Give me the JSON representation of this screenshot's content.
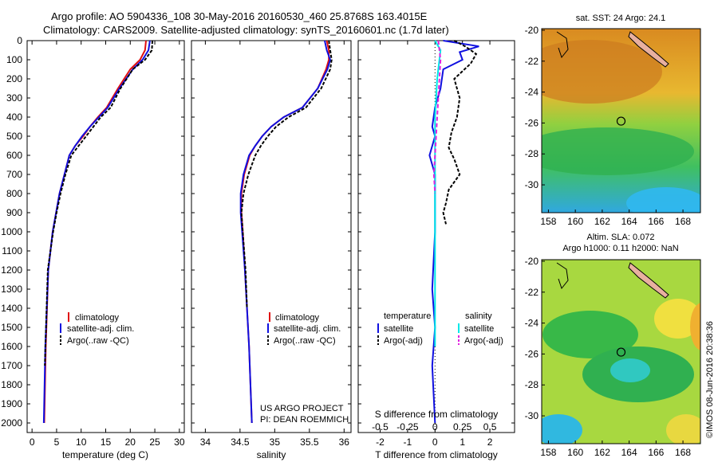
{
  "header": {
    "line1": "Argo profile: AO 5904336_108 30-May-2016 20160530_460 25.8768S 163.4015E",
    "line2": "Climatology: CARS2009. Satellite-adjusted climatology: synTS_20160601.nc (1.7d later)"
  },
  "colors": {
    "climatology": "#e01010",
    "satellite": "#1010e0",
    "argo": "#000000",
    "salinity_sat": "#00e8e8",
    "salinity_argo": "#e020e0"
  },
  "chart_data": [
    {
      "type": "line",
      "panel": "temperature",
      "xlabel": "temperature (deg C)",
      "ylabel": "",
      "xlim": [
        -1,
        31
      ],
      "ylim": [
        2050,
        0
      ],
      "xticks": [
        "0",
        "5",
        "10",
        "15",
        "20",
        "25",
        "30"
      ],
      "yticks": [
        "0",
        "100",
        "200",
        "300",
        "400",
        "500",
        "600",
        "700",
        "800",
        "900",
        "1000",
        "1100",
        "1200",
        "1300",
        "1400",
        "1500",
        "1600",
        "1700",
        "1800",
        "1900",
        "2000"
      ],
      "legend": [
        "climatology",
        "satellite-adj. clim.",
        "Argo(..raw -QC)"
      ],
      "series": [
        {
          "name": "climatology",
          "x": [
            23.2,
            23.0,
            22.0,
            20.0,
            17.5,
            15.2,
            13.4,
            11.8,
            10.4,
            8.8,
            7.6,
            6.6,
            5.6,
            4.9,
            4.2,
            3.3,
            2.8,
            2.5
          ],
          "y": [
            0,
            50,
            100,
            150,
            250,
            350,
            400,
            450,
            500,
            550,
            600,
            700,
            800,
            900,
            1000,
            1200,
            1600,
            2000
          ]
        },
        {
          "name": "satellite-adj. clim.",
          "x": [
            24.0,
            23.7,
            22.5,
            20.5,
            17.8,
            15.4,
            13.6,
            11.8,
            10.2,
            8.8,
            7.6,
            6.6,
            5.6,
            4.9,
            4.2,
            3.3,
            2.7,
            2.4
          ],
          "y": [
            0,
            50,
            100,
            150,
            250,
            350,
            400,
            450,
            500,
            550,
            600,
            700,
            800,
            900,
            1000,
            1200,
            1600,
            2000
          ]
        },
        {
          "name": "Argo(..raw -QC)",
          "x": [
            24.5,
            24.4,
            23.0,
            20.5,
            18.0,
            16.0,
            14.0,
            12.5,
            11.0,
            9.5,
            8.0,
            6.8,
            5.8,
            5.0,
            4.3,
            3.2,
            2.6
          ],
          "y": [
            0,
            50,
            100,
            150,
            250,
            350,
            400,
            450,
            500,
            550,
            600,
            700,
            800,
            900,
            1000,
            1200,
            1700
          ]
        }
      ]
    },
    {
      "type": "line",
      "panel": "salinity",
      "xlabel": "salinity",
      "ylabel": "",
      "xlim": [
        33.8,
        36.1
      ],
      "ylim": [
        2050,
        0
      ],
      "xticks": [
        "34",
        "34.5",
        "35",
        "35.5",
        "36"
      ],
      "legend": [
        "climatology",
        "satellite-adj. clim.",
        "Argo(..raw -QC)"
      ],
      "annotation": [
        "US ARGO PROJECT",
        "PI: DEAN ROEMMICH"
      ],
      "series": [
        {
          "name": "climatology",
          "x": [
            35.75,
            35.78,
            35.78,
            35.74,
            35.62,
            35.4,
            35.13,
            34.95,
            34.82,
            34.72,
            34.64,
            34.56,
            34.52,
            34.52,
            34.54,
            34.57,
            34.6,
            34.63,
            34.67
          ],
          "y": [
            0,
            50,
            100,
            150,
            250,
            350,
            400,
            450,
            500,
            550,
            600,
            700,
            800,
            900,
            1000,
            1200,
            1400,
            1600,
            2000
          ]
        },
        {
          "name": "satellite-adj. clim.",
          "x": [
            35.72,
            35.75,
            35.8,
            35.76,
            35.62,
            35.4,
            35.13,
            34.95,
            34.82,
            34.72,
            34.63,
            34.55,
            34.51,
            34.51,
            34.53,
            34.57,
            34.6,
            34.63,
            34.67
          ],
          "y": [
            0,
            50,
            100,
            150,
            250,
            350,
            400,
            450,
            500,
            550,
            600,
            700,
            800,
            900,
            1000,
            1200,
            1400,
            1600,
            2000
          ]
        },
        {
          "name": "Argo(..raw -QC)",
          "x": [
            35.78,
            35.8,
            35.82,
            35.8,
            35.67,
            35.45,
            35.2,
            35.02,
            34.9,
            34.8,
            34.72,
            34.62,
            34.55,
            34.52,
            34.54,
            34.58,
            34.6
          ],
          "y": [
            0,
            50,
            100,
            150,
            250,
            350,
            400,
            450,
            500,
            550,
            600,
            700,
            800,
            900,
            1000,
            1200,
            1400
          ]
        }
      ]
    },
    {
      "type": "line",
      "panel": "difference",
      "xlabel": "T difference from climatology",
      "xlabel_top": "S difference from climatology",
      "xlim": [
        -2.8,
        2.9
      ],
      "ylim": [
        2050,
        0
      ],
      "xticks": [
        "-2",
        "-1",
        "0",
        "1",
        "2"
      ],
      "xticks_s": [
        "-0.5",
        "-0.25",
        "0",
        "0.25",
        "0.5"
      ],
      "legend_group_t": "temperature",
      "legend_group_s": "salinity",
      "legend": [
        "satellite",
        "Argo(-adj)",
        "satellite",
        "Argo(-adj)"
      ],
      "series": [
        {
          "name": "T satellite",
          "x": [
            0.3,
            1.6,
            0.9,
            1.0,
            0.3,
            0.2,
            0.0,
            -0.1,
            0.0,
            -0.2,
            0.0,
            0.0,
            0.0,
            0.0,
            -0.1,
            0.0,
            -0.1,
            0.0
          ],
          "y": [
            0,
            30,
            60,
            100,
            150,
            250,
            350,
            450,
            500,
            600,
            700,
            800,
            900,
            1000,
            1300,
            1500,
            1700,
            2000
          ]
        },
        {
          "name": "T Argo(-adj)",
          "x": [
            0.7,
            1.1,
            1.5,
            1.3,
            0.7,
            0.9,
            0.8,
            0.6,
            0.5,
            0.7,
            0.9,
            0.5,
            0.4,
            0.3,
            0.4
          ],
          "y": [
            0,
            30,
            70,
            120,
            200,
            300,
            400,
            480,
            560,
            620,
            700,
            780,
            850,
            900,
            960
          ]
        },
        {
          "name": "S satellite",
          "x": [
            0.0,
            0.05,
            0.04,
            0.02,
            0.0,
            0.0,
            0.0,
            0.0
          ],
          "y": [
            0,
            50,
            100,
            200,
            400,
            700,
            1000,
            1600
          ]
        },
        {
          "name": "S Argo(-adj)",
          "x": [
            0.03,
            0.05,
            0.04,
            0.02,
            0.0,
            -0.01,
            0.0
          ],
          "y": [
            0,
            100,
            200,
            400,
            600,
            700,
            800
          ]
        }
      ]
    }
  ],
  "maps": {
    "sst_title": "sat. SST: 24 Argo: 24.1",
    "sla_title_1": "Altim. SLA: 0.072",
    "sla_title_2": "Argo h1000: 0.11 h2000: NaN",
    "lon_ticks": [
      "158",
      "160",
      "162",
      "164",
      "166",
      "168"
    ],
    "lat_ticks": [
      "-20",
      "-22",
      "-24",
      "-26",
      "-28",
      "-30"
    ],
    "lon_range": [
      157.5,
      169.3
    ],
    "lat_range": [
      -31.8,
      -19.9
    ],
    "float_position": {
      "lon": 163.4,
      "lat": -25.88
    }
  },
  "footer": {
    "credit": "©IMOS 08-Jun-2016 20:38:36"
  }
}
